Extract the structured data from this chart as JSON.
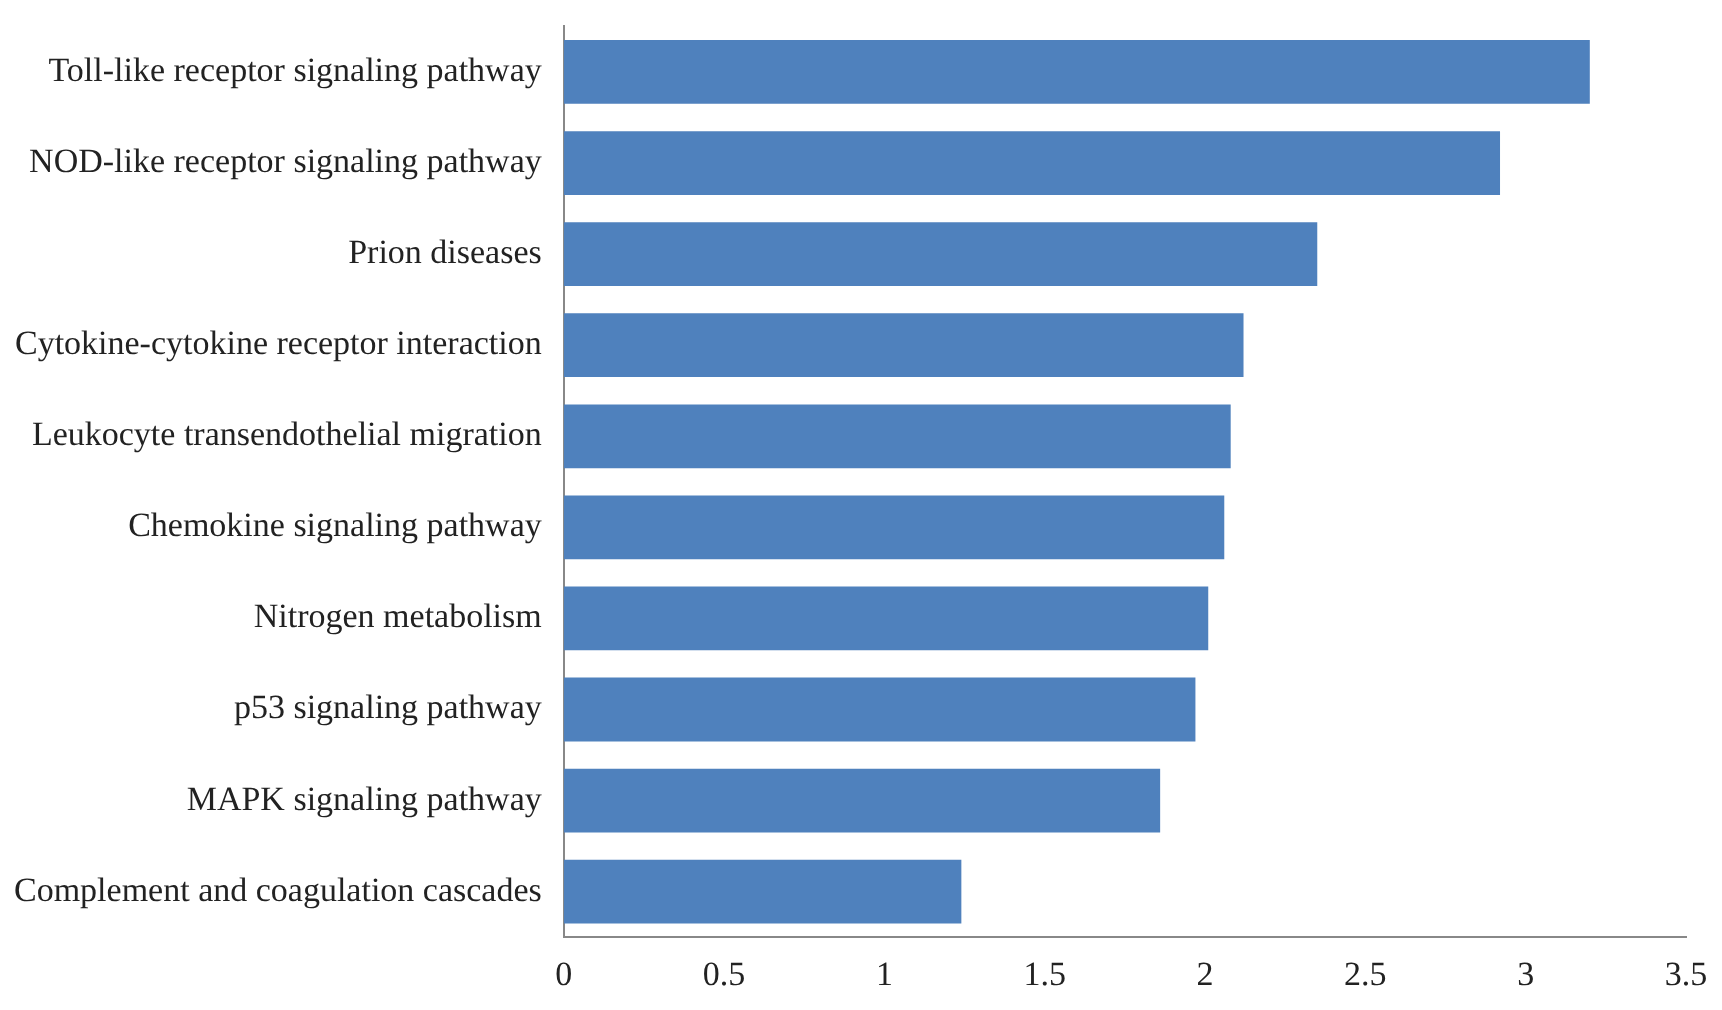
{
  "chart_data": {
    "type": "bar",
    "orientation": "horizontal",
    "categories": [
      "Toll-like receptor signaling pathway",
      "NOD-like receptor signaling pathway",
      "Prion diseases",
      "Cytokine-cytokine receptor interaction",
      "Leukocyte transendothelial migration",
      "Chemokine signaling pathway",
      "Nitrogen metabolism",
      "p53 signaling pathway",
      "MAPK signaling pathway",
      "Complement and coagulation cascades"
    ],
    "values": [
      3.2,
      2.92,
      2.35,
      2.12,
      2.08,
      2.06,
      2.01,
      1.97,
      1.86,
      1.24
    ],
    "color": "#4f81bd",
    "xlim": [
      0,
      3.5
    ],
    "xticks": [
      0,
      0.5,
      1,
      1.5,
      2,
      2.5,
      3,
      3.5
    ],
    "grid": false,
    "legend": false
  }
}
